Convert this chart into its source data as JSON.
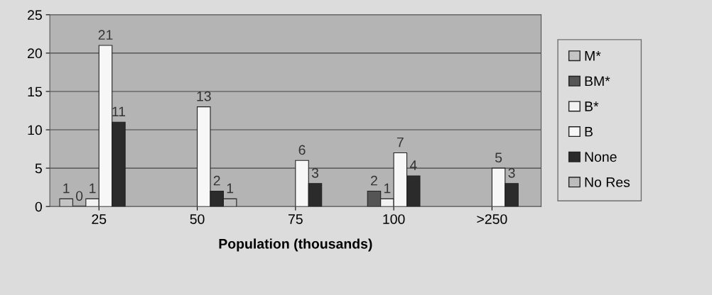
{
  "chart_data": {
    "type": "bar",
    "xlabel": "Population (thousands)",
    "categories": [
      "25",
      "50",
      "75",
      "100",
      ">250"
    ],
    "series": [
      {
        "name": "M*",
        "color": "#c4c4c4",
        "values": [
          1,
          null,
          null,
          null,
          null
        ]
      },
      {
        "name": "BM*",
        "color": "#555555",
        "values": [
          0,
          null,
          null,
          2,
          null
        ]
      },
      {
        "name": "B*",
        "color": "#f2f2f2",
        "values": [
          1,
          null,
          null,
          1,
          null
        ]
      },
      {
        "name": "B",
        "color": "#f7f7f7",
        "values": [
          21,
          13,
          6,
          7,
          5
        ]
      },
      {
        "name": "None",
        "color": "#2b2b2b",
        "values": [
          11,
          2,
          3,
          4,
          3
        ]
      },
      {
        "name": "No Res",
        "color": "#bcbcbc",
        "values": [
          null,
          1,
          null,
          null,
          null
        ]
      }
    ],
    "ylim": [
      0,
      25
    ],
    "yticks": [
      0,
      5,
      10,
      15,
      20,
      25
    ],
    "grid": "y",
    "legend": "right",
    "data_labels": true
  }
}
